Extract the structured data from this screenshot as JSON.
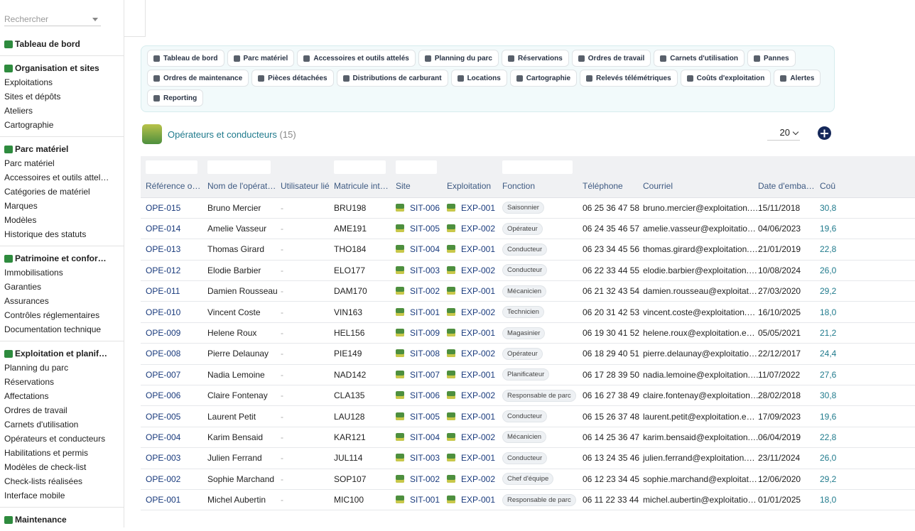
{
  "search": {
    "placeholder": "Rechercher"
  },
  "sidebar": [
    {
      "title": "Tableau de bord",
      "items": []
    },
    {
      "title": "Organisation et sites",
      "items": [
        "Exploitations",
        "Sites et dépôts",
        "Ateliers",
        "Cartographie"
      ]
    },
    {
      "title": "Parc matériel",
      "items": [
        "Parc matériel",
        "Accessoires et outils attel…",
        "Catégories de matériel",
        "Marques",
        "Modèles",
        "Historique des statuts"
      ]
    },
    {
      "title": "Patrimoine et confor…",
      "items": [
        "Immobilisations",
        "Garanties",
        "Assurances",
        "Contrôles réglementaires",
        "Documentation technique"
      ]
    },
    {
      "title": "Exploitation et planif…",
      "items": [
        "Planning du parc",
        "Réservations",
        "Affectations",
        "Ordres de travail",
        "Carnets d'utilisation",
        "Opérateurs et conducteurs",
        "Habilitations et permis",
        "Modèles de check-list",
        "Check-lists réalisées",
        "Interface mobile"
      ]
    },
    {
      "title": "Maintenance",
      "items": []
    }
  ],
  "tabs": [
    "Tableau de bord",
    "Parc matériel",
    "Accessoires et outils attelés",
    "Planning du parc",
    "Réservations",
    "Ordres de travail",
    "Carnets d'utilisation",
    "Pannes",
    "Ordres de maintenance",
    "Pièces détachées",
    "Distributions de carburant",
    "Locations",
    "Cartographie",
    "Relevés télémétriques",
    "Coûts d'exploitation",
    "Alertes",
    "Reporting"
  ],
  "page": {
    "title": "Opérateurs et conducteurs",
    "count": "(15)",
    "page_size": "20"
  },
  "table": {
    "columns": [
      "Référence o…",
      "Nom de l'opérat…",
      "Utilisateur lié",
      "Matricule int…",
      "Site",
      "Exploitation",
      "Fonction",
      "Téléphone",
      "Courriel",
      "Date d'emba…",
      "Coû"
    ],
    "rows": [
      [
        "OPE-015",
        "Bruno Mercier",
        "-",
        "BRU198",
        "SIT-006",
        "EXP-001",
        "Saisonnier",
        "06 25 36 47 58",
        "bruno.mercier@exploitation.…",
        "15/11/2018",
        "30,8"
      ],
      [
        "OPE-014",
        "Amelie Vasseur",
        "-",
        "AME191",
        "SIT-005",
        "EXP-002",
        "Opérateur",
        "06 24 35 46 57",
        "amelie.vasseur@exploitatio…",
        "04/06/2023",
        "19,6"
      ],
      [
        "OPE-013",
        "Thomas Girard",
        "-",
        "THO184",
        "SIT-004",
        "EXP-001",
        "Conducteur",
        "06 23 34 45 56",
        "thomas.girard@exploitation.…",
        "21/01/2019",
        "22,8"
      ],
      [
        "OPE-012",
        "Elodie Barbier",
        "-",
        "ELO177",
        "SIT-003",
        "EXP-002",
        "Conducteur",
        "06 22 33 44 55",
        "elodie.barbier@exploitation.…",
        "10/08/2024",
        "26,0"
      ],
      [
        "OPE-011",
        "Damien Rousseau",
        "-",
        "DAM170",
        "SIT-002",
        "EXP-001",
        "Mécanicien",
        "06 21 32 43 54",
        "damien.rousseau@exploitat…",
        "27/03/2020",
        "29,2"
      ],
      [
        "OPE-010",
        "Vincent Coste",
        "-",
        "VIN163",
        "SIT-001",
        "EXP-002",
        "Technicien",
        "06 20 31 42 53",
        "vincent.coste@exploitation.…",
        "16/10/2025",
        "18,0"
      ],
      [
        "OPE-009",
        "Helene Roux",
        "-",
        "HEL156",
        "SIT-009",
        "EXP-001",
        "Magasinier",
        "06 19 30 41 52",
        "helene.roux@exploitation.e…",
        "05/05/2021",
        "21,2"
      ],
      [
        "OPE-008",
        "Pierre Delaunay",
        "-",
        "PIE149",
        "SIT-008",
        "EXP-002",
        "Opérateur",
        "06 18 29 40 51",
        "pierre.delaunay@exploitatio…",
        "22/12/2017",
        "24,4"
      ],
      [
        "OPE-007",
        "Nadia Lemoine",
        "-",
        "NAD142",
        "SIT-007",
        "EXP-001",
        "Planificateur",
        "06 17 28 39 50",
        "nadia.lemoine@exploitation.…",
        "11/07/2022",
        "27,6"
      ],
      [
        "OPE-006",
        "Claire Fontenay",
        "-",
        "CLA135",
        "SIT-006",
        "EXP-002",
        "Responsable de parc",
        "06 16 27 38 49",
        "claire.fontenay@exploitation…",
        "28/02/2018",
        "30,8"
      ],
      [
        "OPE-005",
        "Laurent Petit",
        "-",
        "LAU128",
        "SIT-005",
        "EXP-001",
        "Conducteur",
        "06 15 26 37 48",
        "laurent.petit@exploitation.e…",
        "17/09/2023",
        "19,6"
      ],
      [
        "OPE-004",
        "Karim Bensaid",
        "-",
        "KAR121",
        "SIT-004",
        "EXP-002",
        "Mécanicien",
        "06 14 25 36 47",
        "karim.bensaid@exploitation.…",
        "06/04/2019",
        "22,8"
      ],
      [
        "OPE-003",
        "Julien Ferrand",
        "-",
        "JUL114",
        "SIT-003",
        "EXP-001",
        "Conducteur",
        "06 13 24 35 46",
        "julien.ferrand@exploitation.…",
        "23/11/2024",
        "26,0"
      ],
      [
        "OPE-002",
        "Sophie Marchand",
        "-",
        "SOP107",
        "SIT-002",
        "EXP-002",
        "Chef d'équipe",
        "06 12 23 34 45",
        "sophie.marchand@exploitat…",
        "12/06/2020",
        "29,2"
      ],
      [
        "OPE-001",
        "Michel Aubertin",
        "-",
        "MIC100",
        "SIT-001",
        "EXP-001",
        "Responsable de parc",
        "06 11 22 33 44",
        "michel.aubertin@exploitatio…",
        "01/01/2025",
        "18,0"
      ]
    ]
  }
}
